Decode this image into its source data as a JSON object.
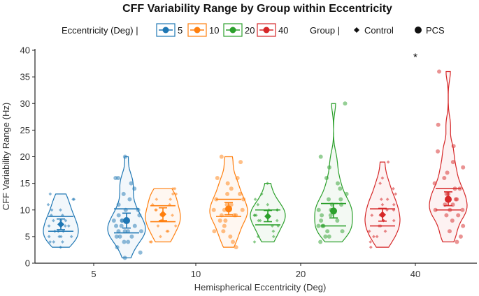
{
  "chart_data": {
    "type": "violin",
    "title": "CFF Variability Range by Group within Eccentricity",
    "xlabel": "Hemispherical Eccentricity (Deg)",
    "ylabel": "CFF Variability Range (Hz)",
    "ylim": [
      0,
      40
    ],
    "yticks": [
      0,
      5,
      10,
      15,
      20,
      25,
      30,
      35,
      40
    ],
    "categories": [
      "5",
      "10",
      "20",
      "40"
    ],
    "legend": {
      "eccentricity_title": "Eccentricity (Deg) |",
      "eccentricity_entries": [
        {
          "label": "5",
          "color": "#1f77b4"
        },
        {
          "label": "10",
          "color": "#ff7f0e"
        },
        {
          "label": "20",
          "color": "#2ca02c"
        },
        {
          "label": "40",
          "color": "#d62728"
        }
      ],
      "group_title": "Group |",
      "group_entries": [
        {
          "label": "Control",
          "marker": "diamond"
        },
        {
          "label": "PCS",
          "marker": "circle"
        }
      ],
      "position": "top"
    },
    "annotations": [
      {
        "text": "*",
        "category": "40",
        "y": 39
      }
    ],
    "series": [
      {
        "eccentricity": "5",
        "group": "Control",
        "color": "#1f77b4",
        "min": 3,
        "max": 13,
        "q1": 6,
        "median": 7.5,
        "q3": 8.8,
        "mean": 7.3,
        "ci": [
          6.3,
          8.3
        ],
        "points": [
          3,
          4,
          4,
          4,
          5,
          5,
          5,
          5,
          6,
          6,
          6,
          7,
          7,
          7,
          8,
          8,
          8,
          9,
          9,
          10,
          10,
          11,
          12,
          12,
          13
        ]
      },
      {
        "eccentricity": "5",
        "group": "PCS",
        "color": "#1f77b4",
        "min": 1,
        "max": 20,
        "q1": 5.7,
        "median": 7.5,
        "q3": 10.2,
        "mean": 8.0,
        "ci": [
          6.6,
          9.4
        ],
        "points": [
          1,
          2,
          3,
          4,
          4,
          5,
          5,
          5,
          6,
          6,
          6,
          6,
          7,
          7,
          7,
          8,
          8,
          8,
          9,
          9,
          10,
          10,
          11,
          12,
          13,
          14,
          15,
          16,
          16,
          20
        ]
      },
      {
        "eccentricity": "10",
        "group": "Control",
        "color": "#ff7f0e",
        "min": 4,
        "max": 14,
        "q1": 7.8,
        "median": 8.8,
        "q3": 10.8,
        "mean": 9.2,
        "ci": [
          8.0,
          10.4
        ],
        "points": [
          4,
          4,
          5,
          6,
          6,
          7,
          7,
          8,
          8,
          8,
          9,
          9,
          9,
          10,
          10,
          11,
          11,
          12,
          12,
          13,
          13,
          14,
          14
        ]
      },
      {
        "eccentricity": "10",
        "group": "PCS",
        "color": "#ff7f0e",
        "min": 3,
        "max": 20,
        "q1": 8.8,
        "median": 10.0,
        "q3": 12.0,
        "mean": 10.2,
        "ci": [
          9.1,
          11.4
        ],
        "points": [
          3,
          4,
          5,
          6,
          6,
          7,
          8,
          8,
          9,
          9,
          9,
          10,
          10,
          10,
          11,
          11,
          12,
          12,
          13,
          13,
          14,
          15,
          16,
          16,
          19,
          20
        ]
      },
      {
        "eccentricity": "20",
        "group": "Control",
        "color": "#2ca02c",
        "min": 4,
        "max": 15,
        "q1": 7.2,
        "median": 8.5,
        "q3": 10.0,
        "mean": 8.8,
        "ci": [
          7.8,
          9.9
        ],
        "points": [
          4,
          5,
          5,
          6,
          7,
          7,
          8,
          8,
          8,
          9,
          9,
          9,
          10,
          10,
          10,
          11,
          11,
          12,
          13,
          15
        ]
      },
      {
        "eccentricity": "20",
        "group": "PCS",
        "color": "#2ca02c",
        "min": 4,
        "max": 30,
        "q1": 7.0,
        "median": 9.5,
        "q3": 11.2,
        "mean": 9.8,
        "ci": [
          8.5,
          11.2
        ],
        "points": [
          4,
          5,
          5,
          6,
          6,
          7,
          7,
          7,
          8,
          8,
          9,
          9,
          10,
          10,
          10,
          11,
          11,
          12,
          12,
          13,
          14,
          15,
          16,
          18,
          20,
          30
        ]
      },
      {
        "eccentricity": "40",
        "group": "Control",
        "color": "#d62728",
        "min": 3,
        "max": 19,
        "q1": 7.0,
        "median": 8.8,
        "q3": 10.2,
        "mean": 9.1,
        "ci": [
          7.9,
          10.3
        ],
        "points": [
          3,
          4,
          5,
          5,
          6,
          6,
          7,
          7,
          8,
          8,
          8,
          9,
          9,
          10,
          10,
          11,
          11,
          12,
          12,
          13,
          14,
          15,
          16,
          19
        ]
      },
      {
        "eccentricity": "40",
        "group": "PCS",
        "color": "#d62728",
        "min": 4,
        "max": 36,
        "q1": 10.0,
        "median": 11.0,
        "q3": 14.0,
        "mean": 12.0,
        "ci": [
          10.8,
          13.4
        ],
        "points": [
          4,
          5,
          6,
          7,
          8,
          9,
          9,
          10,
          10,
          10,
          11,
          11,
          12,
          12,
          13,
          13,
          14,
          14,
          15,
          16,
          17,
          18,
          19,
          21,
          22,
          26,
          36
        ]
      }
    ]
  }
}
